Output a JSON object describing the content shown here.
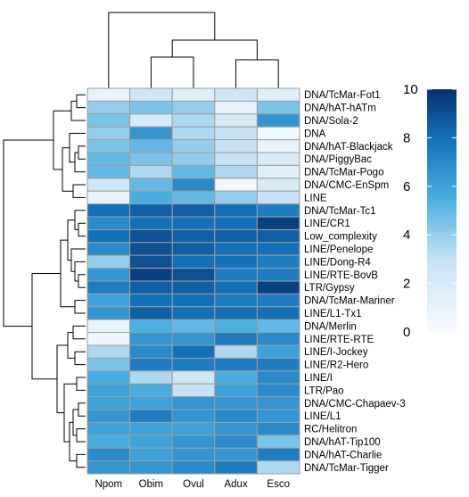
{
  "chart_data": {
    "type": "heatmap",
    "title": "",
    "xlabel": "",
    "ylabel": "",
    "columns": [
      "Npom",
      "Obim",
      "Ovul",
      "Adux",
      "Esco"
    ],
    "rows": [
      "DNA/TcMar-Fot1",
      "DNA/hAT-hATm",
      "DNA/Sola-2",
      "DNA",
      "DNA/hAT-Blackjack",
      "DNA/PiggyBac",
      "DNA/TcMar-Pogo",
      "DNA/CMC-EnSpm",
      "LINE",
      "DNA/TcMar-Tc1",
      "LINE/CR1",
      "Low_complexity",
      "LINE/Penelope",
      "LINE/Dong-R4",
      "LINE/RTE-BovB",
      "LTR/Gypsy",
      "DNA/TcMar-Mariner",
      "LINE/L1-Tx1",
      "DNA/Merlin",
      "LINE/RTE-RTE",
      "LINE/I-Jockey",
      "LINE/R2-Hero",
      "LINE/I",
      "LTR/Pao",
      "DNA/CMC-Chapaev-3",
      "LINE/L1",
      "RC/Helitron",
      "DNA/hAT-Tip100",
      "DNA/hAT-Charlie",
      "DNA/TcMar-Tigger"
    ],
    "values": [
      [
        1.0,
        2.5,
        1.5,
        2.5,
        1.5
      ],
      [
        4.0,
        4.5,
        4.0,
        1.0,
        4.5
      ],
      [
        4.5,
        2.0,
        3.5,
        2.0,
        6.5
      ],
      [
        4.0,
        6.5,
        3.5,
        3.0,
        0.3
      ],
      [
        4.5,
        5.0,
        4.0,
        3.0,
        1.0
      ],
      [
        5.0,
        4.5,
        4.0,
        3.0,
        2.0
      ],
      [
        5.0,
        3.5,
        5.0,
        3.5,
        1.5
      ],
      [
        2.5,
        5.0,
        7.0,
        0.5,
        2.0
      ],
      [
        1.0,
        5.5,
        5.0,
        4.0,
        3.0
      ],
      [
        8.0,
        8.5,
        8.5,
        8.0,
        7.5
      ],
      [
        7.0,
        8.0,
        8.0,
        8.0,
        9.5
      ],
      [
        8.0,
        9.0,
        8.5,
        8.5,
        8.5
      ],
      [
        7.0,
        9.0,
        8.5,
        8.0,
        8.0
      ],
      [
        4.0,
        9.0,
        8.0,
        8.0,
        7.5
      ],
      [
        6.5,
        9.5,
        9.0,
        7.5,
        7.5
      ],
      [
        7.5,
        8.5,
        8.5,
        8.0,
        9.5
      ],
      [
        6.0,
        8.0,
        8.0,
        7.5,
        7.5
      ],
      [
        6.5,
        8.5,
        8.0,
        8.0,
        8.0
      ],
      [
        1.0,
        5.5,
        5.0,
        5.5,
        5.0
      ],
      [
        0.5,
        6.5,
        6.5,
        7.5,
        7.0
      ],
      [
        3.5,
        7.0,
        8.0,
        3.5,
        6.0
      ],
      [
        4.5,
        7.5,
        7.5,
        7.5,
        7.5
      ],
      [
        5.5,
        3.5,
        2.5,
        5.5,
        7.0
      ],
      [
        6.0,
        5.5,
        3.0,
        6.0,
        7.0
      ],
      [
        6.0,
        6.0,
        6.5,
        6.5,
        6.5
      ],
      [
        6.5,
        7.5,
        6.5,
        7.0,
        6.5
      ],
      [
        6.0,
        6.0,
        6.0,
        6.5,
        7.0
      ],
      [
        5.5,
        6.0,
        6.5,
        7.0,
        4.5
      ],
      [
        7.0,
        6.0,
        6.5,
        6.5,
        7.5
      ],
      [
        6.5,
        6.5,
        7.0,
        7.5,
        3.5
      ]
    ],
    "legend": {
      "ticks": [
        0,
        2,
        4,
        6,
        8,
        10
      ],
      "min": 0,
      "max": 10,
      "color_low": "#f7fbff",
      "color_high": "#08306b",
      "color_mid": "#2b8cd0"
    },
    "row_dendrogram": "hierarchical clustering of rows",
    "col_dendrogram": "hierarchical clustering of columns",
    "cell_border_color": "#9e9e9e"
  }
}
